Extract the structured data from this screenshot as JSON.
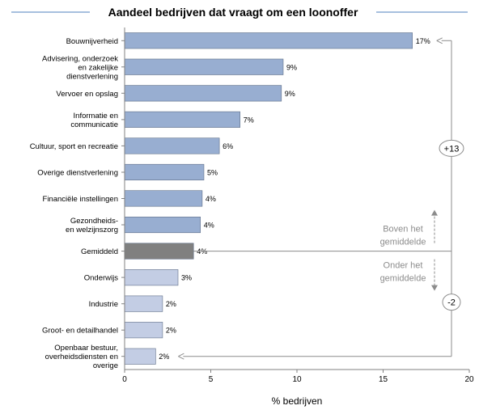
{
  "chart_data": {
    "type": "bar",
    "orientation": "horizontal",
    "title": "Aandeel bedrijven dat vraagt om een loonoffer",
    "xlabel": "% bedrijven",
    "xlim": [
      0,
      20
    ],
    "xticks": [
      0,
      5,
      10,
      15,
      20
    ],
    "grid": false,
    "categories": [
      [
        "Bouwnijverheid"
      ],
      [
        "Advisering, onderzoek",
        "en zakelijke",
        "dienstverlening"
      ],
      [
        "Vervoer en opslag"
      ],
      [
        "Informatie en",
        "communicatie"
      ],
      [
        "Cultuur, sport en recreatie"
      ],
      [
        "Overige dienstverlening"
      ],
      [
        "Financiële instellingen"
      ],
      [
        "Gezondheids-",
        "en welzijnszorg"
      ],
      [
        "Gemiddeld"
      ],
      [
        "Onderwijs"
      ],
      [
        "Industrie"
      ],
      [
        "Groot- en detailhandel"
      ],
      [
        "Openbaar bestuur,",
        "overheidsdiensten en",
        "overige"
      ]
    ],
    "values": [
      16.7,
      9.2,
      9.1,
      6.7,
      5.5,
      4.6,
      4.5,
      4.4,
      4.0,
      3.1,
      2.2,
      2.2,
      1.8
    ],
    "data_labels": [
      "17%",
      "9%",
      "9%",
      "7%",
      "6%",
      "5%",
      "4%",
      "4%",
      "4%",
      "3%",
      "2%",
      "2%",
      "2%"
    ],
    "groups": [
      "above",
      "above",
      "above",
      "above",
      "above",
      "above",
      "above",
      "above",
      "average",
      "below",
      "below",
      "below",
      "below"
    ],
    "colors": {
      "above": "#98aed1",
      "average": "#808080",
      "below": "#c3cde4",
      "bar_edge": "#5f6f88",
      "annotation": "#8c8c8c",
      "title_rule": "#4f81bd"
    },
    "annotations": {
      "above_label": [
        "Boven het",
        "gemiddelde"
      ],
      "below_label": [
        "Onder het",
        "gemiddelde"
      ],
      "above_diff": "+13",
      "below_diff": "-2"
    }
  }
}
